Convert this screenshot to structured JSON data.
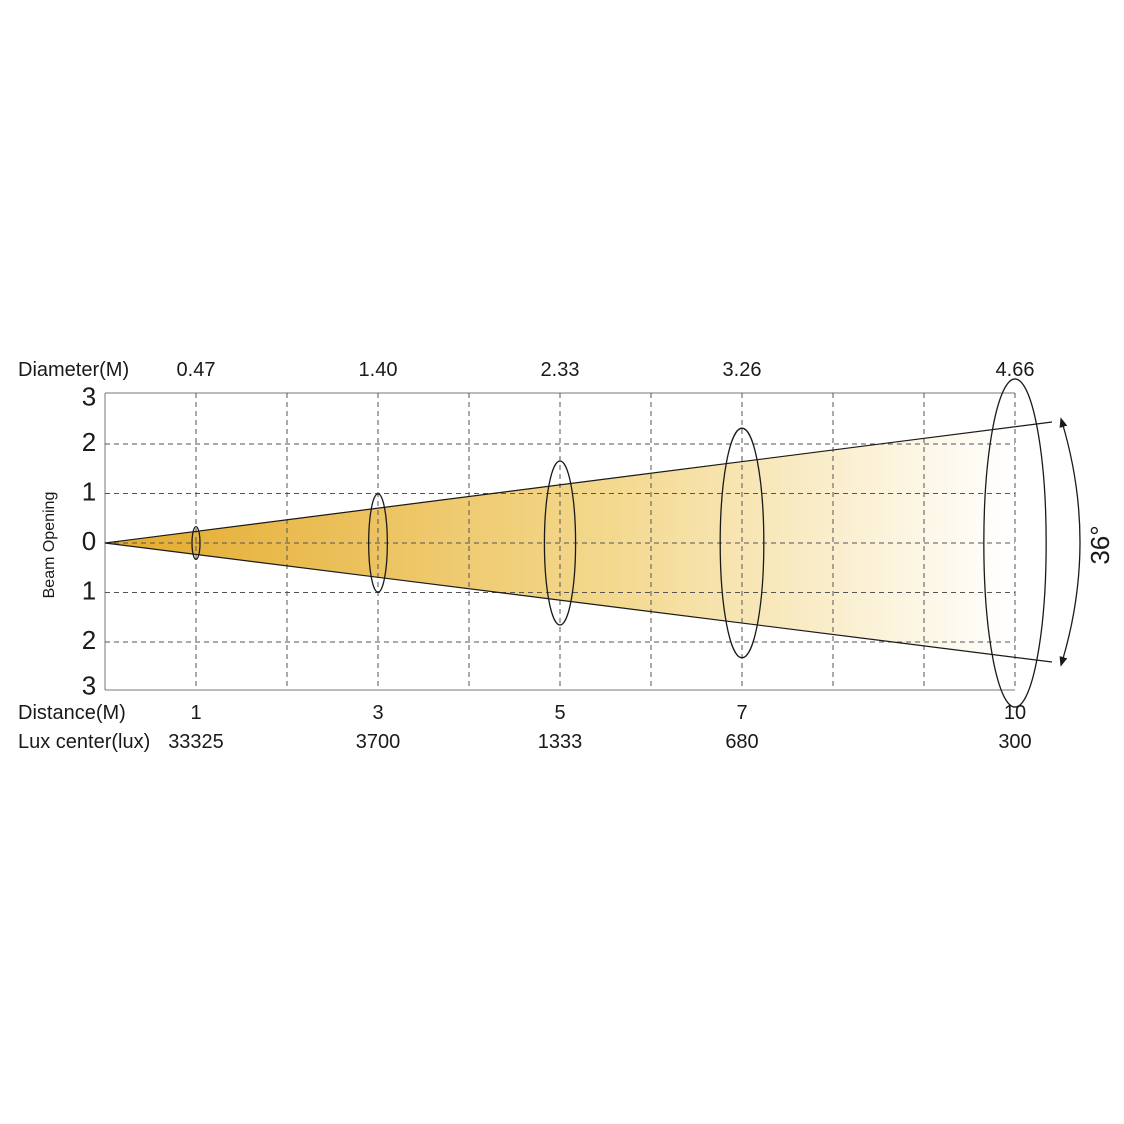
{
  "diagram": {
    "diameter_title": "Diameter(M)",
    "distance_title": "Distance(M)",
    "lux_title": "Lux center(lux)",
    "y_title": "Beam Opening",
    "beam_angle": "36°",
    "y_ticks": [
      "3",
      "2",
      "1",
      "0",
      "1",
      "2",
      "3"
    ],
    "colors": {
      "beam_near": "#e4aa2c",
      "beam_far": "#ffffff",
      "lines": "#1a1a1a",
      "grid": "#555555"
    }
  },
  "chart_data": {
    "type": "table",
    "measurements": [
      {
        "distance": "1",
        "diameter": "0.47",
        "lux": "33325"
      },
      {
        "distance": "3",
        "diameter": "1.40",
        "lux": "3700"
      },
      {
        "distance": "5",
        "diameter": "2.33",
        "lux": "1333"
      },
      {
        "distance": "7",
        "diameter": "3.26",
        "lux": "680"
      },
      {
        "distance": "10",
        "diameter": "4.66",
        "lux": "300"
      }
    ],
    "ylim": [
      -3,
      3
    ],
    "xlim": [
      0,
      10
    ],
    "grid": true
  }
}
